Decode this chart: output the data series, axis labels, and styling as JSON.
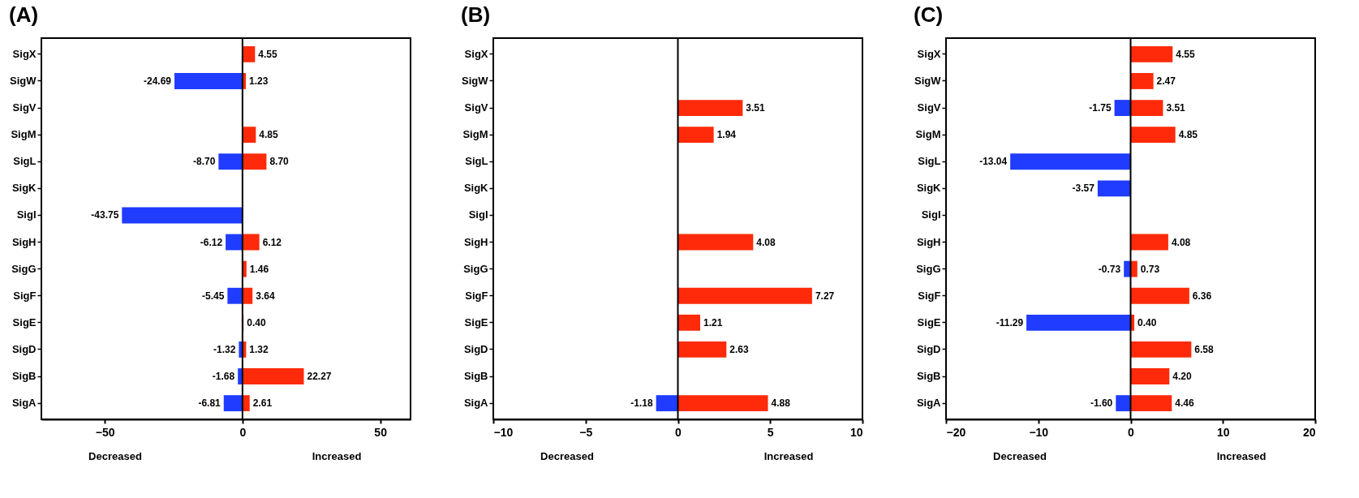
{
  "chart_data": [
    {
      "type": "bar",
      "title": "(A)",
      "orientation": "horizontal",
      "stacked": true,
      "grid": false,
      "categories": [
        "SigX",
        "SigW",
        "SigV",
        "SigM",
        "SigL",
        "SigK",
        "SigI",
        "SigH",
        "SigG",
        "SigF",
        "SigE",
        "SigD",
        "SigB",
        "SigA"
      ],
      "series": [
        {
          "color": "#1f3cff",
          "values": [
            null,
            -24.69,
            null,
            null,
            -8.7,
            null,
            -43.75,
            -6.12,
            null,
            -5.45,
            null,
            -1.32,
            -1.68,
            -6.81
          ],
          "value_labels": [
            null,
            "-24.69",
            null,
            null,
            "-8.70",
            null,
            "-43.75",
            "-6.12",
            null,
            "-5.45",
            null,
            "-1.32",
            "-1.68",
            "-6.81"
          ]
        },
        {
          "color": "#ff2a0a",
          "values": [
            4.55,
            1.23,
            null,
            4.85,
            8.7,
            null,
            null,
            6.12,
            1.46,
            3.64,
            0.4,
            1.32,
            22.27,
            2.61
          ],
          "value_labels": [
            "4.55",
            "1.23",
            null,
            "4.85",
            "8.70",
            null,
            null,
            "6.12",
            "1.46",
            "3.64",
            "0.40",
            "1.32",
            "22.27",
            "2.61"
          ]
        }
      ],
      "xlim": [
        -73,
        61
      ],
      "xticks": [
        -50,
        0,
        50
      ],
      "ref_lines": [
        {
          "axis": "x",
          "value": 0,
          "color": "#000000"
        }
      ],
      "annotations": [
        "Decreased",
        "Increased"
      ]
    },
    {
      "type": "bar",
      "title": "(B)",
      "orientation": "horizontal",
      "stacked": true,
      "grid": false,
      "categories": [
        "SigX",
        "SigW",
        "SigV",
        "SigM",
        "SigL",
        "SigK",
        "SigI",
        "SigH",
        "SigG",
        "SigF",
        "SigE",
        "SigD",
        "SigB",
        "SigA"
      ],
      "series": [
        {
          "color": "#1f3cff",
          "values": [
            null,
            null,
            null,
            null,
            null,
            null,
            null,
            null,
            null,
            null,
            null,
            null,
            null,
            -1.18
          ],
          "value_labels": [
            null,
            null,
            null,
            null,
            null,
            null,
            null,
            null,
            null,
            null,
            null,
            null,
            null,
            "-1.18"
          ]
        },
        {
          "color": "#ff2a0a",
          "values": [
            null,
            null,
            3.51,
            1.94,
            null,
            null,
            null,
            4.08,
            null,
            7.27,
            1.21,
            2.63,
            null,
            4.88
          ],
          "value_labels": [
            null,
            null,
            "3.51",
            "1.94",
            null,
            null,
            null,
            "4.08",
            null,
            "7.27",
            "1.21",
            "2.63",
            null,
            "4.88"
          ]
        }
      ],
      "xlim": [
        -10,
        10
      ],
      "xticks": [
        -10,
        -5,
        0,
        5,
        10
      ],
      "ref_lines": [
        {
          "axis": "x",
          "value": 0,
          "color": "#000000"
        }
      ],
      "annotations": [
        "Decreased",
        "Increased"
      ]
    },
    {
      "type": "bar",
      "title": "(C)",
      "orientation": "horizontal",
      "stacked": true,
      "grid": false,
      "categories": [
        "SigX",
        "SigW",
        "SigV",
        "SigM",
        "SigL",
        "SigK",
        "SigI",
        "SigH",
        "SigG",
        "SigF",
        "SigE",
        "SigD",
        "SigB",
        "SigA"
      ],
      "series": [
        {
          "color": "#1f3cff",
          "values": [
            null,
            null,
            -1.75,
            null,
            -13.04,
            -3.57,
            null,
            null,
            -0.73,
            null,
            -11.29,
            null,
            null,
            -1.6
          ],
          "value_labels": [
            null,
            null,
            "-1.75",
            null,
            "-13.04",
            "-3.57",
            null,
            null,
            "-0.73",
            null,
            "-11.29",
            null,
            null,
            "-1.60"
          ]
        },
        {
          "color": "#ff2a0a",
          "values": [
            4.55,
            2.47,
            3.51,
            4.85,
            null,
            null,
            null,
            4.08,
            0.73,
            6.36,
            0.4,
            6.58,
            4.2,
            4.46
          ],
          "value_labels": [
            "4.55",
            "2.47",
            "3.51",
            "4.85",
            null,
            null,
            null,
            "4.08",
            "0.73",
            "6.36",
            "0.40",
            "6.58",
            "4.20",
            "4.46"
          ]
        }
      ],
      "xlim": [
        -20,
        20
      ],
      "xticks": [
        -20,
        -10,
        0,
        10,
        20
      ],
      "ref_lines": [
        {
          "axis": "x",
          "value": 0,
          "color": "#000000"
        }
      ],
      "annotations": [
        "Decreased",
        "Increased"
      ]
    }
  ]
}
